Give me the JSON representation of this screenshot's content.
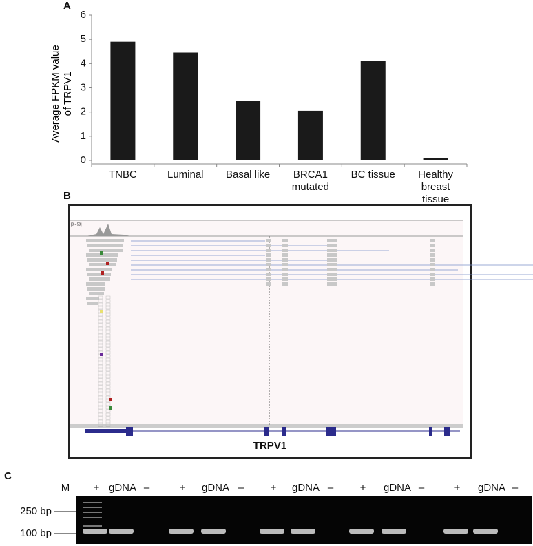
{
  "chart_data": {
    "type": "bar",
    "panel": "A",
    "y_label": "Average FPKM value\nof TRPV1",
    "categories": [
      "TNBC",
      "Luminal",
      "Basal like",
      "BRCA1\nmutated",
      "BC tissue",
      "Healthy\nbreast\ntissue"
    ],
    "values": [
      4.9,
      4.45,
      2.45,
      2.05,
      4.1,
      0.1
    ],
    "color": "#1a1a1a",
    "ylim": [
      0,
      6
    ],
    "yticks": [
      0,
      1,
      2,
      3,
      4,
      5,
      6
    ],
    "grid": false
  },
  "igv": {
    "panel": "B",
    "range": "[0 - 58]",
    "gene": "TRPV1"
  },
  "gel": {
    "panel": "C",
    "lanes": [
      "M",
      "+",
      "gDNA",
      "–",
      "+",
      "gDNA",
      "–",
      "+",
      "gDNA",
      "–",
      "+",
      "gDNA",
      "–",
      "+",
      "gDNA",
      "–"
    ],
    "markers": [
      "250 bp",
      "100 bp"
    ]
  }
}
